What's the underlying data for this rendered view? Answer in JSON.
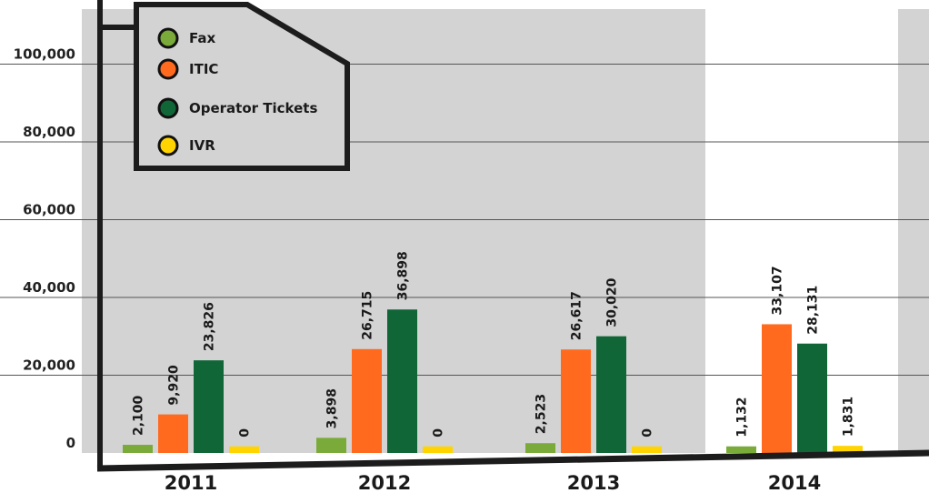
{
  "chart_data": {
    "type": "bar",
    "categories": [
      "2011",
      "2012",
      "2013",
      "2014"
    ],
    "ylim": [
      0,
      110000
    ],
    "yticks": [
      0,
      20000,
      40000,
      60000,
      80000,
      100000
    ],
    "ytick_labels": [
      "0",
      "20,000",
      "40,000",
      "60,000",
      "80,000",
      "100,000"
    ],
    "grid": true,
    "legend_position": "top-left",
    "series": [
      {
        "name": "Fax",
        "color": "#7aab3a",
        "values": [
          2100,
          3898,
          2523,
          1132
        ],
        "labels": [
          "2,100",
          "3,898",
          "2,523",
          "1,132"
        ]
      },
      {
        "name": "ITIC",
        "color": "#ff6a1f",
        "values": [
          9920,
          26715,
          26617,
          33107
        ],
        "labels": [
          "9,920",
          "26,715",
          "26,617",
          "33,107"
        ]
      },
      {
        "name": "Operator Tickets",
        "color": "#116638",
        "values": [
          23826,
          36898,
          30020,
          28131
        ],
        "labels": [
          "23,826",
          "36,898",
          "30,020",
          "28,131"
        ]
      },
      {
        "name": "IVR",
        "color": "#ffd400",
        "values": [
          0,
          0,
          0,
          1831
        ],
        "labels": [
          "0",
          "0",
          "0",
          "1,831"
        ]
      }
    ],
    "band_color": "#d3d3d3",
    "axis_color": "#1c1c1c"
  }
}
